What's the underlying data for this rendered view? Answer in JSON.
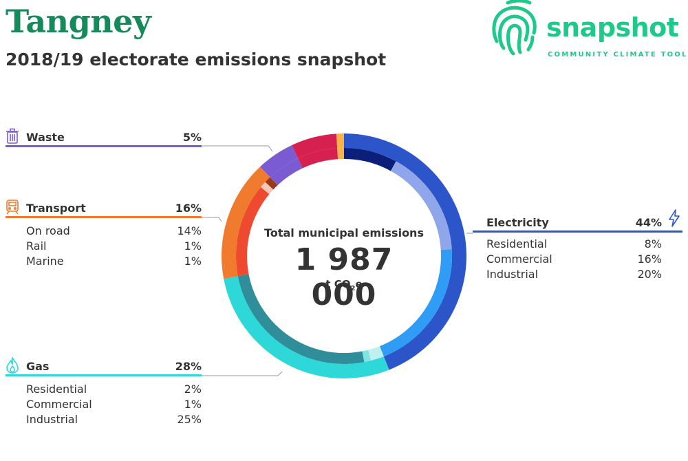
{
  "header": {
    "title": "Tangney",
    "subtitle": "2018/19 electorate emissions snapshot"
  },
  "logo": {
    "word": "snapshot",
    "tagline": "COMMUNITY CLIMATE TOOL",
    "color": "#1fc98a"
  },
  "total": {
    "label": "Total municipal emissions",
    "value": "1 987 000",
    "unit_prefix": "t CO",
    "unit_sub": "2",
    "unit_suffix": "e"
  },
  "categories": {
    "waste": {
      "name": "Waste",
      "pct": "5%",
      "color": "#7b5bd1",
      "icon": "trash-bin-icon"
    },
    "transport": {
      "name": "Transport",
      "pct": "16%",
      "color": "#f07b2e",
      "icon": "train-icon",
      "subs": [
        {
          "label": "On road",
          "value": "14%"
        },
        {
          "label": "Rail",
          "value": "1%"
        },
        {
          "label": "Marine",
          "value": "1%"
        }
      ]
    },
    "gas": {
      "name": "Gas",
      "pct": "28%",
      "color": "#2ed8d8",
      "icon": "flame-icon",
      "subs": [
        {
          "label": "Residential",
          "value": "2%"
        },
        {
          "label": "Commercial",
          "value": "1%"
        },
        {
          "label": "Industrial",
          "value": "25%"
        }
      ]
    },
    "electricity": {
      "name": "Electricity",
      "pct": "44%",
      "color": "#2c55c9",
      "icon": "lightning-icon",
      "subs": [
        {
          "label": "Residential",
          "value": "8%"
        },
        {
          "label": "Commercial",
          "value": "16%"
        },
        {
          "label": "Industrial",
          "value": "20%"
        }
      ]
    }
  },
  "chart_data": {
    "type": "pie",
    "variant": "donut",
    "outer_ring": [
      {
        "name": "Electricity",
        "value": 44,
        "color": "#2c55c9"
      },
      {
        "name": "Gas",
        "value": 28,
        "color": "#2ed8d8"
      },
      {
        "name": "Transport",
        "value": 16,
        "color": "#f07b2e"
      },
      {
        "name": "Waste",
        "value": 5,
        "color": "#7b5bd1"
      },
      {
        "name": "",
        "value": 6,
        "color": "#d6204f"
      },
      {
        "name": "",
        "value": 1,
        "color": "#f7b34a"
      }
    ],
    "inner_ring": [
      {
        "name": "Electricity Residential",
        "value": 8,
        "color": "#0a1e7a"
      },
      {
        "name": "Electricity Commercial",
        "value": 16,
        "color": "#8fa6ea"
      },
      {
        "name": "Electricity Industrial",
        "value": 20,
        "color": "#2f9df5"
      },
      {
        "name": "Gas Residential",
        "value": 2,
        "color": "#bff0f0"
      },
      {
        "name": "Gas Commercial",
        "value": 1,
        "color": "#7fe4e4"
      },
      {
        "name": "Gas Industrial",
        "value": 25,
        "color": "#2f8e9a"
      },
      {
        "name": "Transport On road",
        "value": 14,
        "color": "#ee4a2f"
      },
      {
        "name": "Transport Rail",
        "value": 1,
        "color": "#f3c8b8"
      },
      {
        "name": "Transport Marine",
        "value": 1,
        "color": "#9a3a1a"
      },
      {
        "name": "Waste",
        "value": 5,
        "color": "#7b5bd1"
      },
      {
        "name": "",
        "value": 6,
        "color": "#d6204f"
      },
      {
        "name": "",
        "value": 1,
        "color": "#f7b34a"
      }
    ]
  }
}
